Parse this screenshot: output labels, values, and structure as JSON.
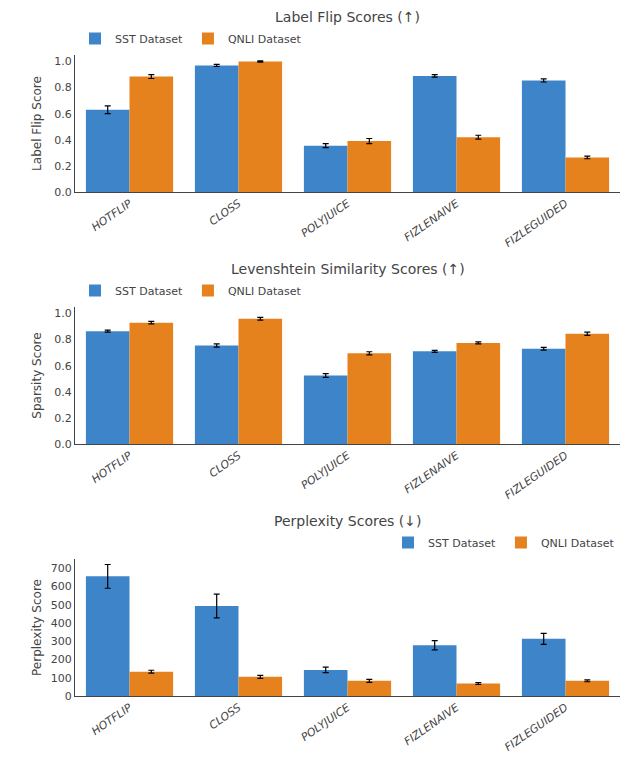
{
  "chart_data": [
    {
      "type": "bar",
      "title": "Label Flip Scores (↑)",
      "ylabel": "Label Flip Score",
      "categories": [
        "HOTFLIP",
        "CLOSS",
        "POLYJUICE",
        "FIZLENAIVE",
        "FIZLEGUIDED"
      ],
      "series": [
        {
          "name": "SST Dataset",
          "color": "#3d85c8",
          "values": [
            0.63,
            0.97,
            0.355,
            0.89,
            0.855
          ],
          "errors": [
            0.03,
            0.008,
            0.015,
            0.01,
            0.012
          ]
        },
        {
          "name": "QNLI Dataset",
          "color": "#e6821e",
          "values": [
            0.885,
            1.0,
            0.39,
            0.42,
            0.265
          ],
          "errors": [
            0.015,
            0.005,
            0.02,
            0.015,
            0.01
          ]
        }
      ],
      "ylim": [
        0.0,
        1.05
      ],
      "yticks": [
        {
          "value": 0.0,
          "label": "0.0"
        },
        0.2,
        0.4,
        0.6,
        0.8,
        {
          "value": 1.0,
          "label": "1.0"
        }
      ],
      "legend": "upper left",
      "grid": false
    },
    {
      "type": "bar",
      "title": "Levenshtein Similarity Scores (↑)",
      "ylabel": "Sparsity Score",
      "categories": [
        "HOTFLIP",
        "CLOSS",
        "POLYJUICE",
        "FIZLENAIVE",
        "FIZLEGUIDED"
      ],
      "series": [
        {
          "name": "SST Dataset",
          "color": "#3d85c8",
          "values": [
            0.865,
            0.755,
            0.525,
            0.71,
            0.73
          ],
          "errors": [
            0.008,
            0.012,
            0.015,
            0.008,
            0.01
          ]
        },
        {
          "name": "QNLI Dataset",
          "color": "#e6821e",
          "values": [
            0.93,
            0.96,
            0.695,
            0.775,
            0.845
          ],
          "errors": [
            0.01,
            0.01,
            0.012,
            0.008,
            0.012
          ]
        }
      ],
      "ylim": [
        0.0,
        1.05
      ],
      "yticks": [
        {
          "value": 0.0,
          "label": "0.0"
        },
        0.2,
        0.4,
        0.6,
        0.8,
        {
          "value": 1.0,
          "label": "1.0"
        }
      ],
      "legend": "upper left",
      "grid": false
    },
    {
      "type": "bar",
      "title": "Perplexity Scores (↓)",
      "ylabel": "Perplexity Score",
      "categories": [
        "HOTFLIP",
        "CLOSS",
        "POLYJUICE",
        "FIZLENAIVE",
        "FIZLEGUIDED"
      ],
      "series": [
        {
          "name": "SST Dataset",
          "color": "#3d85c8",
          "values": [
            655,
            493,
            143,
            278,
            313
          ],
          "errors": [
            65,
            65,
            15,
            25,
            30
          ]
        },
        {
          "name": "QNLI Dataset",
          "color": "#e6821e",
          "values": [
            133,
            105,
            83,
            68,
            83
          ],
          "errors": [
            8,
            8,
            8,
            5,
            5
          ]
        }
      ],
      "ylim": [
        0,
        750
      ],
      "yticks": [
        0,
        100,
        200,
        300,
        400,
        500,
        600,
        700
      ],
      "legend": "upper right",
      "grid": false
    }
  ]
}
